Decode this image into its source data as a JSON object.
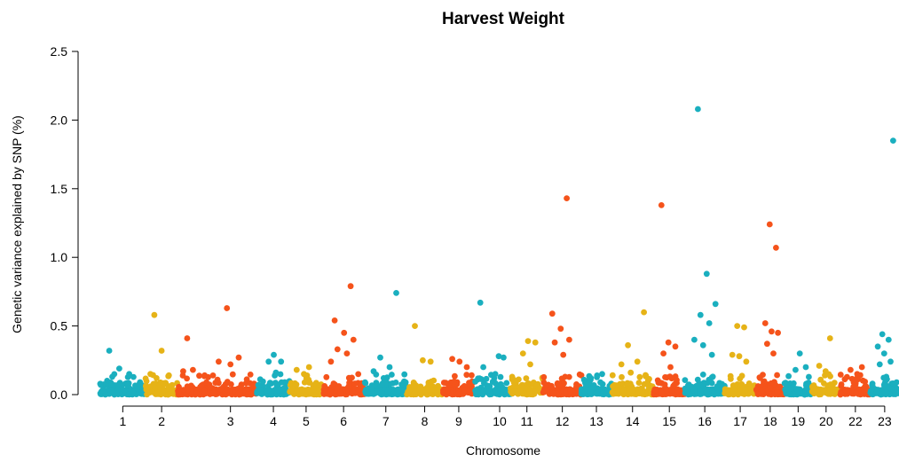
{
  "chart_data": {
    "type": "scatter",
    "title": "Harvest Weight",
    "xlabel": "Chromosome",
    "ylabel": "Genetic variance explained by SNP (%)",
    "ylim": [
      0,
      2.5
    ],
    "yticks": [
      "0.0",
      "0.5",
      "1.0",
      "1.5",
      "2.0",
      "2.5"
    ],
    "grid": false,
    "colors": [
      "#1AAFBF",
      "#E6B317",
      "#F5531B"
    ],
    "chromosomes": [
      {
        "label": "1",
        "color": "#1AAFBF",
        "start": 0,
        "end": 3.3,
        "peaks": [
          0.32,
          0.19,
          0.15,
          0.13
        ]
      },
      {
        "label": "2",
        "color": "#E6B317",
        "start": 3.3,
        "end": 5.7,
        "peaks": [
          0.58,
          0.32,
          0.14,
          0.12
        ]
      },
      {
        "label": "",
        "color": "#F5531B",
        "start": 5.7,
        "end": 7.6,
        "peaks": [
          0.41,
          0.18,
          0.17
        ]
      },
      {
        "label": "3",
        "color": "#F5531B",
        "start": 7.6,
        "end": 11.5,
        "peaks": [
          0.63,
          0.27,
          0.24,
          0.22
        ]
      },
      {
        "label": "4",
        "color": "#1AAFBF",
        "start": 11.5,
        "end": 13.9,
        "peaks": [
          0.29,
          0.24,
          0.24,
          0.16
        ]
      },
      {
        "label": "5",
        "color": "#E6B317",
        "start": 13.9,
        "end": 16.3,
        "peaks": [
          0.2,
          0.18,
          0.15
        ]
      },
      {
        "label": "6",
        "color": "#F5531B",
        "start": 16.3,
        "end": 19.4,
        "peaks": [
          0.79,
          0.54,
          0.45,
          0.4,
          0.33,
          0.3,
          0.24
        ]
      },
      {
        "label": "7",
        "color": "#1AAFBF",
        "start": 19.4,
        "end": 22.5,
        "peaks": [
          0.74,
          0.27,
          0.2,
          0.17
        ]
      },
      {
        "label": "8",
        "color": "#E6B317",
        "start": 22.5,
        "end": 25.1,
        "peaks": [
          0.5,
          0.25,
          0.24
        ]
      },
      {
        "label": "9",
        "color": "#F5531B",
        "start": 25.1,
        "end": 27.5,
        "peaks": [
          0.26,
          0.24,
          0.2
        ]
      },
      {
        "label": "",
        "color": "#1AAFBF",
        "start": 27.5,
        "end": 28.5,
        "peaks": [
          0.67,
          0.2
        ]
      },
      {
        "label": "10",
        "color": "#1AAFBF",
        "start": 28.5,
        "end": 30.1,
        "peaks": [
          0.28,
          0.27,
          0.15
        ]
      },
      {
        "label": "11",
        "color": "#E6B317",
        "start": 30.1,
        "end": 32.5,
        "peaks": [
          0.39,
          0.38,
          0.3,
          0.22
        ]
      },
      {
        "label": "12",
        "color": "#F5531B",
        "start": 32.5,
        "end": 35.3,
        "peaks": [
          1.43,
          0.59,
          0.48,
          0.4,
          0.38,
          0.29
        ]
      },
      {
        "label": "13",
        "color": "#1AAFBF",
        "start": 35.3,
        "end": 37.5,
        "peaks": [
          0.15,
          0.12
        ]
      },
      {
        "label": "14",
        "color": "#E6B317",
        "start": 37.5,
        "end": 40.6,
        "peaks": [
          0.6,
          0.36,
          0.24,
          0.22,
          0.16
        ]
      },
      {
        "label": "15",
        "color": "#F5531B",
        "start": 40.6,
        "end": 42.9,
        "peaks": [
          1.38,
          0.38,
          0.35,
          0.3,
          0.2
        ]
      },
      {
        "label": "16",
        "color": "#1AAFBF",
        "start": 42.9,
        "end": 45.8,
        "peaks": [
          2.08,
          0.88,
          0.66,
          0.58,
          0.52,
          0.4,
          0.36,
          0.29
        ]
      },
      {
        "label": "17",
        "color": "#E6B317",
        "start": 45.8,
        "end": 48.1,
        "peaks": [
          0.5,
          0.49,
          0.29,
          0.28,
          0.24
        ]
      },
      {
        "label": "18",
        "color": "#F5531B",
        "start": 48.1,
        "end": 50.2,
        "peaks": [
          1.24,
          1.07,
          0.52,
          0.46,
          0.45,
          0.37,
          0.3
        ]
      },
      {
        "label": "19",
        "color": "#1AAFBF",
        "start": 50.2,
        "end": 52.2,
        "peaks": [
          0.3,
          0.2,
          0.18
        ]
      },
      {
        "label": "20",
        "color": "#E6B317",
        "start": 52.2,
        "end": 54.3,
        "peaks": [
          0.41,
          0.21,
          0.17
        ]
      },
      {
        "label": "22",
        "color": "#F5531B",
        "start": 54.3,
        "end": 56.5,
        "peaks": [
          0.2,
          0.18,
          0.15
        ]
      },
      {
        "label": "23",
        "color": "#1AAFBF",
        "start": 56.5,
        "end": 58.6,
        "peaks": [
          1.85,
          0.44,
          0.4,
          0.35,
          0.3,
          0.24,
          0.22
        ]
      }
    ]
  }
}
